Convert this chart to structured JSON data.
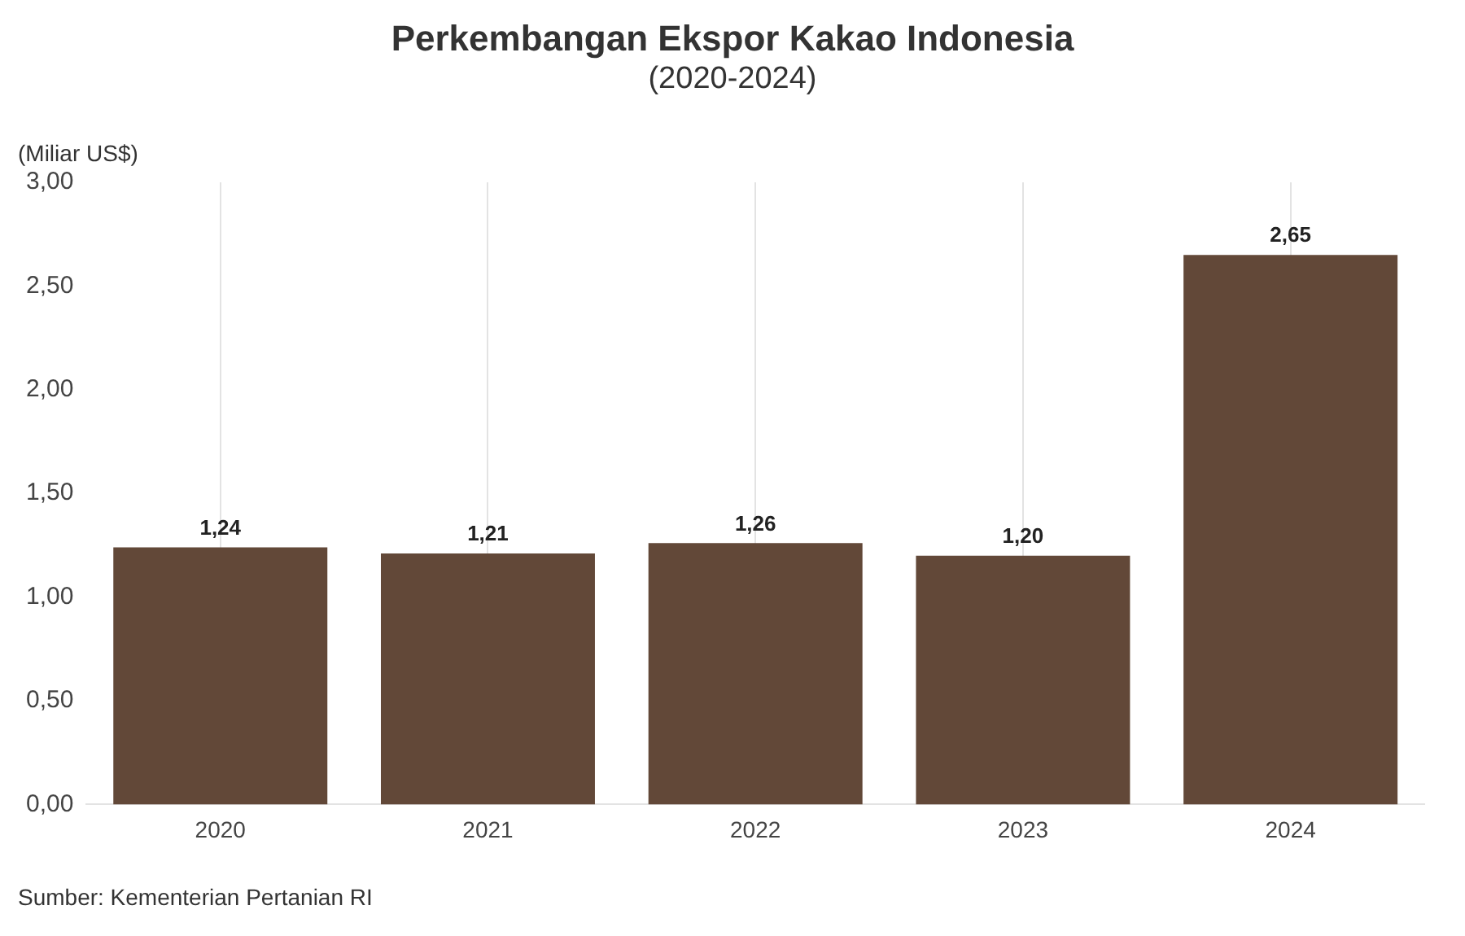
{
  "chart_data": {
    "type": "bar",
    "title": "Perkembangan Ekspor Kakao Indonesia",
    "subtitle": "(2020-2024)",
    "ylabel": "(Miliar US$)",
    "categories": [
      "2020",
      "2021",
      "2022",
      "2023",
      "2024"
    ],
    "values": [
      1.24,
      1.21,
      1.26,
      1.2,
      2.65
    ],
    "value_labels": [
      "1,24",
      "1,21",
      "1,26",
      "1,20",
      "2,65"
    ],
    "color": "#624838",
    "ylim": [
      0,
      3
    ],
    "yticks": [
      {
        "value": 0,
        "label": "0,00"
      },
      {
        "value": 0.5,
        "label": "0,50"
      },
      {
        "value": 1,
        "label": "1,00"
      },
      {
        "value": 1.5,
        "label": "1,50"
      },
      {
        "value": 2,
        "label": "2,00"
      },
      {
        "value": 2.5,
        "label": "2,50"
      },
      {
        "value": 3,
        "label": "3,00"
      }
    ],
    "grid": "x",
    "annotations": [
      "Sumber: Kementerian Pertanian RI"
    ]
  }
}
